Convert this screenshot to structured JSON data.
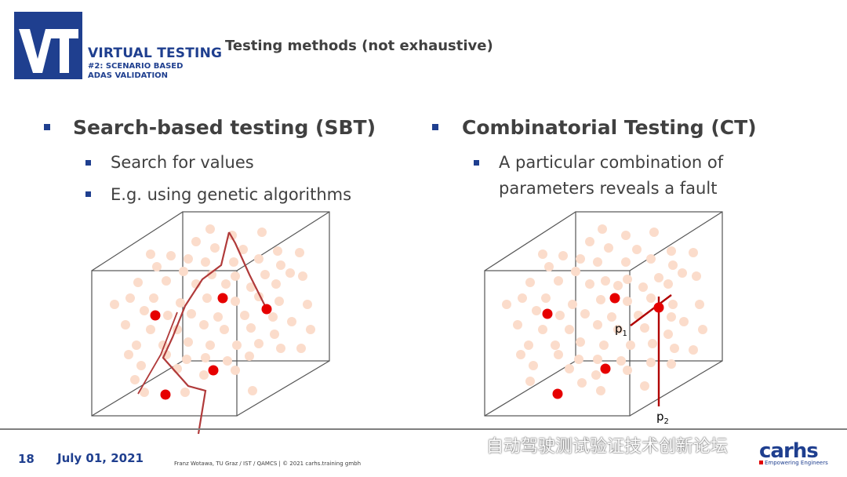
{
  "header": {
    "logo_mark": "VT",
    "logo_title": "VIRTUAL TESTING",
    "logo_subtitle_1": "#2: SCENARIO BASED",
    "logo_subtitle_2": "ADAS VALIDATION",
    "slide_title": "Testing methods (not exhaustive)"
  },
  "left": {
    "heading": "Search-based testing (SBT)",
    "bullets": [
      "Search for values",
      "E.g. using genetic algorithms"
    ]
  },
  "right": {
    "heading": "Combinatorial Testing (CT)",
    "bullet_line1": "A particular combination of",
    "bullet_line2": "parameters reveals a fault",
    "label_p1": "p",
    "label_p1_sub": "1",
    "label_p2": "p",
    "label_p2_sub": "2"
  },
  "footer": {
    "page_number": "18",
    "date": "July 01, 2021",
    "credit": "Franz Wotawa, TU Graz / IST / QAMCS | © 2021 carhs.training gmbh",
    "watermark": "自动驾驶测试验证技术创新论坛",
    "brand": "carhs",
    "brand_tagline": "Empowering Engineers"
  },
  "colors": {
    "brand_blue": "#1f3f8f",
    "dot_light": "#fbdccb",
    "dot_fault": "#e60000",
    "search_path": "#b03a3a"
  }
}
